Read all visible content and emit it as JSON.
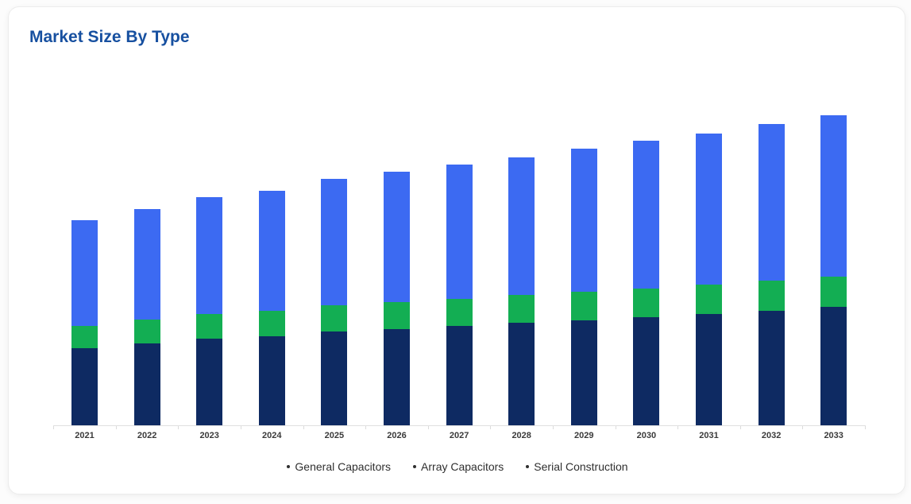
{
  "page": {
    "background": "#fcfcfc"
  },
  "card": {
    "background": "#ffffff",
    "border_color": "#ececec"
  },
  "header": {
    "title": "Market Size By Type",
    "color": "#1750a0"
  },
  "chart_data": {
    "type": "bar",
    "stacked": true,
    "title": "Market Size By Type",
    "categories": [
      "2021",
      "2022",
      "2023",
      "2024",
      "2025",
      "2026",
      "2027",
      "2028",
      "2029",
      "2030",
      "2031",
      "2032",
      "2033"
    ],
    "series": [
      {
        "name": "General Capacitors",
        "color": "#0e2a62",
        "values": [
          97,
          103,
          109,
          112,
          118,
          121,
          125,
          129,
          132,
          136,
          140,
          144,
          149
        ]
      },
      {
        "name": "Array Capacitors",
        "color": "#13ae53",
        "values": [
          28,
          30,
          31,
          32,
          33,
          34,
          34,
          35,
          36,
          36,
          37,
          38,
          38
        ]
      },
      {
        "name": "Serial Construction",
        "color": "#3c6af2",
        "values": [
          133,
          139,
          147,
          151,
          159,
          164,
          169,
          173,
          180,
          186,
          190,
          197,
          203
        ]
      }
    ],
    "value_axis": {
      "visible": false,
      "min": 0,
      "max": 420
    },
    "grid": false,
    "legend_position": "bottom",
    "axis_color": "#e0e0e0",
    "category_label_color": "#3a3a3a",
    "legend_text_color": "#2f2f2f",
    "legend_marker_color": "#2f2f2f"
  }
}
